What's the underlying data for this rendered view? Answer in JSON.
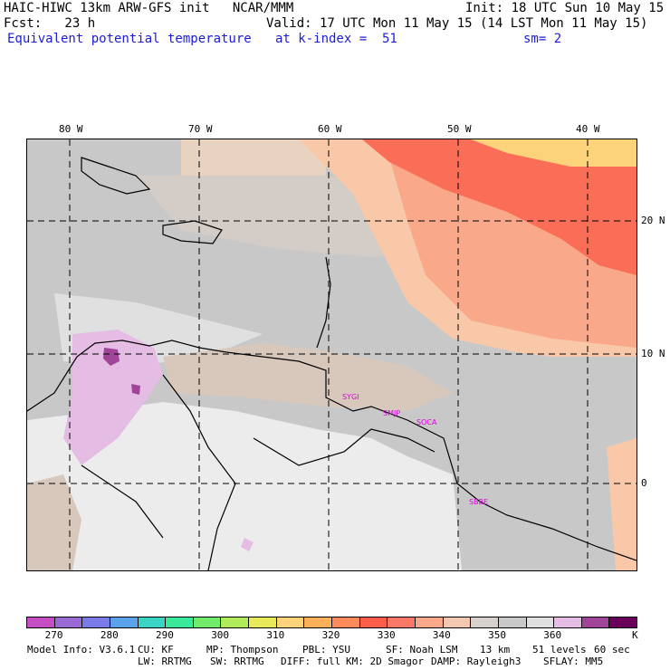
{
  "header": {
    "line1_left": "HAIC-HIWC 13km ARW-GFS init   NCAR/MMM",
    "line1_right": "Init: 18 UTC Sun 10 May 15",
    "line2_left": "Fcst:   23 h",
    "line2_right": "Valid: 17 UTC Mon 11 May 15 (14 LST Mon 11 May 15)",
    "line3_field": "Equivalent potential temperature",
    "line3_level": "at k-index =  51",
    "line3_smooth": "sm= 2"
  },
  "map": {
    "lon_labels": [
      "80 W",
      "70 W",
      "60 W",
      "50 W",
      "40 W"
    ],
    "lat_labels": [
      "20 N",
      "10 N",
      "0"
    ],
    "stations": [
      "SYGI",
      "SMJP",
      "SOCA",
      "SBBE"
    ]
  },
  "colorbar": {
    "colors": [
      "#c44dc4",
      "#9a6ad4",
      "#7a7ae8",
      "#5aa2ea",
      "#3ad4c4",
      "#3ae89a",
      "#72ea6a",
      "#b0ec5a",
      "#e8ea5a",
      "#fcd27a",
      "#fcb05a",
      "#fc8a5a",
      "#fa5e4a",
      "#fa7868",
      "#faa88a",
      "#f4c8b0",
      "#d8d0cc",
      "#c8c8c8",
      "#e0e0e0",
      "#e4bce4",
      "#a0449a",
      "#6a005a"
    ],
    "labels": [
      "270",
      "280",
      "290",
      "300",
      "310",
      "320",
      "330",
      "340",
      "350",
      "360"
    ],
    "unit": "K"
  },
  "footer": {
    "line1": [
      "Model Info: V3.6.1",
      "CU: KF",
      "MP: Thompson",
      "PBL: YSU",
      "SF: Noah LSM",
      "13 km",
      "51 levels",
      "60 sec"
    ],
    "line2": [
      "LW: RRTMG",
      "SW: RRTMG",
      "DIFF: full",
      "KM: 2D Smagor",
      "DAMP: Rayleigh3",
      "SFLAY: MM5"
    ]
  }
}
